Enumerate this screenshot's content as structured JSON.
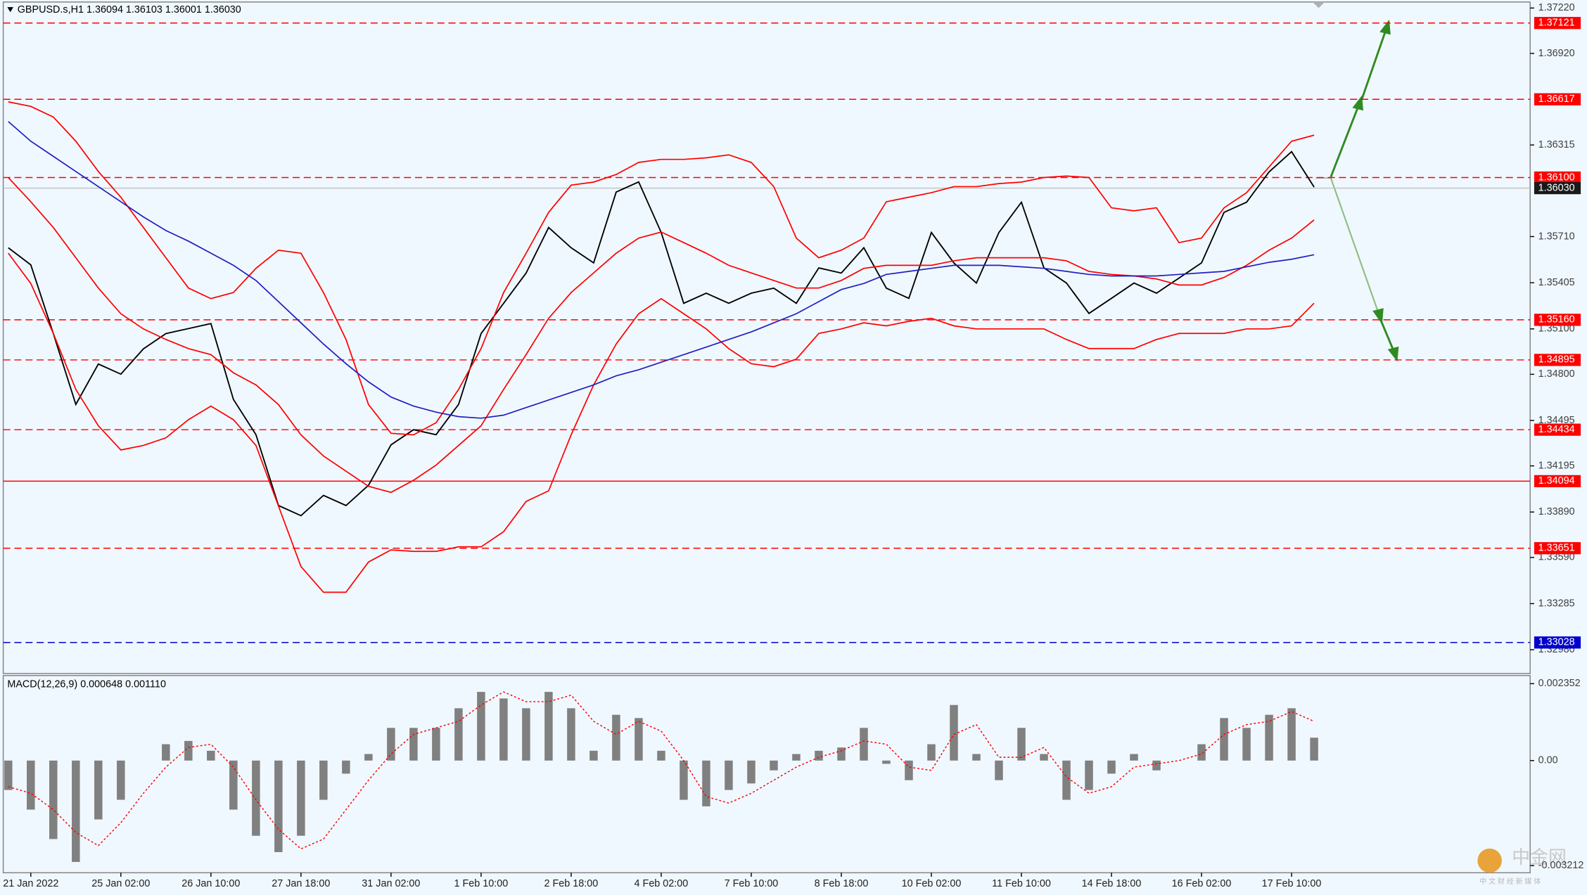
{
  "chart_data": [
    {
      "type": "line",
      "title": "GBPUSD.s,H1  1.36094 1.36103 1.36001 1.36030",
      "categories": [
        null,
        "21 Jan 2022",
        null,
        null,
        null,
        "25 Jan 02:00",
        null,
        null,
        null,
        "26 Jan 10:00",
        null,
        null,
        null,
        "27 Jan 18:00",
        null,
        null,
        null,
        "31 Jan 02:00",
        null,
        null,
        null,
        "1 Feb 10:00",
        null,
        null,
        null,
        "2 Feb 18:00",
        null,
        null,
        null,
        "4 Feb 02:00",
        null,
        null,
        null,
        "7 Feb 10:00",
        null,
        null,
        null,
        "8 Feb 18:00",
        null,
        null,
        null,
        "10 Feb 02:00",
        null,
        null,
        null,
        "11 Feb 10:00",
        null,
        null,
        null,
        "14 Feb 18:00",
        null,
        null,
        null,
        "16 Feb 02:00",
        null,
        null,
        null,
        "17 Feb 10:00",
        null
      ],
      "series": [
        {
          "color": "#000000",
          "values": [
            1.35636,
            1.35523,
            1.35069,
            1.34601,
            1.34868,
            1.34801,
            1.34968,
            1.35069,
            1.35102,
            1.35135,
            1.34634,
            1.34401,
            1.33933,
            1.33866,
            1.34,
            1.33933,
            1.34067,
            1.34334,
            1.34434,
            1.34401,
            1.34601,
            1.35069,
            1.35269,
            1.35469,
            1.3577,
            1.35636,
            1.35536,
            1.36004,
            1.36071,
            1.35737,
            1.35269,
            1.35336,
            1.35269,
            1.35336,
            1.35369,
            1.35269,
            1.35503,
            1.35469,
            1.35636,
            1.35369,
            1.35302,
            1.35737,
            1.35536,
            1.35403,
            1.35737,
            1.35937,
            1.35503,
            1.35403,
            1.35202,
            1.35302,
            1.35403,
            1.35336,
            1.35436,
            1.35536,
            1.3587,
            1.35937,
            1.36137,
            1.36271,
            1.36037
          ]
        },
        {
          "color": "#ff0000",
          "values": [
            1.366,
            1.3657,
            1.365,
            1.3634,
            1.3614,
            1.3597,
            1.3577,
            1.3557,
            1.3537,
            1.353,
            1.3534,
            1.355,
            1.3562,
            1.356,
            1.3534,
            1.3503,
            1.346,
            1.3441,
            1.344,
            1.3448,
            1.347,
            1.3497,
            1.3534,
            1.356,
            1.3587,
            1.3605,
            1.3607,
            1.3612,
            1.362,
            1.3622,
            1.3622,
            1.3623,
            1.3625,
            1.362,
            1.3604,
            1.357,
            1.3557,
            1.3562,
            1.357,
            1.3594,
            1.3597,
            1.36,
            1.3604,
            1.3604,
            1.3606,
            1.3607,
            1.361,
            1.3611,
            1.361,
            1.359,
            1.3588,
            1.359,
            1.3567,
            1.357,
            1.359,
            1.36,
            1.3617,
            1.3634,
            1.3638
          ]
        },
        {
          "color": "#ff0000",
          "values": [
            1.361,
            1.3594,
            1.3577,
            1.3557,
            1.3537,
            1.352,
            1.351,
            1.3503,
            1.3497,
            1.3493,
            1.3481,
            1.3473,
            1.346,
            1.344,
            1.3426,
            1.3416,
            1.3406,
            1.3402,
            1.341,
            1.342,
            1.3433,
            1.3446,
            1.347,
            1.3493,
            1.3517,
            1.3534,
            1.3547,
            1.356,
            1.357,
            1.3574,
            1.3567,
            1.356,
            1.3552,
            1.3547,
            1.3542,
            1.3537,
            1.3537,
            1.3542,
            1.355,
            1.3552,
            1.3552,
            1.3552,
            1.3555,
            1.3557,
            1.3557,
            1.3557,
            1.3557,
            1.3555,
            1.3548,
            1.3546,
            1.3545,
            1.3543,
            1.3539,
            1.3539,
            1.3544,
            1.3552,
            1.3562,
            1.357,
            1.3582
          ]
        },
        {
          "color": "#ff0000",
          "values": [
            1.356,
            1.354,
            1.3507,
            1.347,
            1.3446,
            1.343,
            1.3433,
            1.3438,
            1.345,
            1.3459,
            1.345,
            1.3433,
            1.3393,
            1.3353,
            1.3336,
            1.3336,
            1.3356,
            1.3364,
            1.3363,
            1.3363,
            1.3366,
            1.3366,
            1.3376,
            1.3396,
            1.3403,
            1.344,
            1.3473,
            1.35,
            1.352,
            1.353,
            1.352,
            1.351,
            1.3497,
            1.3487,
            1.3485,
            1.349,
            1.3507,
            1.351,
            1.3514,
            1.3512,
            1.3515,
            1.3517,
            1.3512,
            1.351,
            1.351,
            1.351,
            1.351,
            1.3503,
            1.3497,
            1.3497,
            1.3497,
            1.3503,
            1.3507,
            1.3507,
            1.3507,
            1.351,
            1.351,
            1.3512,
            1.3527
          ]
        },
        {
          "color": "#2020c0",
          "values": [
            1.3647,
            1.3634,
            1.3624,
            1.3614,
            1.3604,
            1.3594,
            1.3584,
            1.3575,
            1.3568,
            1.356,
            1.3552,
            1.3542,
            1.3528,
            1.3514,
            1.35,
            1.3487,
            1.3475,
            1.3465,
            1.3459,
            1.3455,
            1.3452,
            1.3451,
            1.3453,
            1.3458,
            1.3463,
            1.3468,
            1.3473,
            1.3479,
            1.3483,
            1.3488,
            1.3493,
            1.3498,
            1.3503,
            1.3508,
            1.3514,
            1.352,
            1.3528,
            1.3536,
            1.354,
            1.3546,
            1.3548,
            1.355,
            1.3552,
            1.3552,
            1.3552,
            1.3551,
            1.355,
            1.3548,
            1.3546,
            1.3545,
            1.3545,
            1.3545,
            1.3546,
            1.3547,
            1.3548,
            1.3551,
            1.3554,
            1.3556,
            1.3559
          ]
        }
      ],
      "ylim": [
        1.32823,
        1.37273
      ],
      "yticks": [
        {
          "value": 1.3722,
          "label": "1.37220"
        },
        {
          "value": 1.3692,
          "label": "1.36920"
        },
        {
          "value": 1.36315,
          "label": "1.36315"
        },
        {
          "value": 1.3571,
          "label": "1.35710"
        },
        {
          "value": 1.35405,
          "label": "1.35405"
        },
        {
          "value": 1.351,
          "label": "1.35100"
        },
        {
          "value": 1.348,
          "label": "1.34800"
        },
        {
          "value": 1.34495,
          "label": "1.34495"
        },
        {
          "value": 1.34195,
          "label": "1.34195"
        },
        {
          "value": 1.3389,
          "label": "1.33890"
        },
        {
          "value": 1.3359,
          "label": "1.33590"
        },
        {
          "value": 1.33285,
          "label": "1.33285"
        },
        {
          "value": 1.3298,
          "label": "1.32980"
        }
      ],
      "levels": [
        {
          "value": 1.37121,
          "label": "1.37121",
          "color": "#ff0000",
          "style": "dashed"
        },
        {
          "value": 1.36617,
          "label": "1.36617",
          "color": "#ff0000",
          "style": "dashed"
        },
        {
          "value": 1.361,
          "label": "1.36100",
          "color": "#ff0000",
          "style": "dashed"
        },
        {
          "value": 1.3516,
          "label": "1.35160",
          "color": "#ff0000",
          "style": "dashed"
        },
        {
          "value": 1.34895,
          "label": "1.34895",
          "color": "#ff0000",
          "style": "dashed"
        },
        {
          "value": 1.34434,
          "label": "1.34434",
          "color": "#ff0000",
          "style": "dashed"
        },
        {
          "value": 1.34094,
          "label": "1.34094",
          "color": "#ff0000",
          "style": "solid"
        },
        {
          "value": 1.33651,
          "label": "1.33651",
          "color": "#ff0000",
          "style": "dashed"
        },
        {
          "value": 1.33028,
          "label": "1.33028",
          "color": "#0000cc",
          "style": "dashed"
        }
      ],
      "current_price": {
        "value": 1.3603,
        "label": "1.36030",
        "color": "#c0c0c0"
      }
    },
    {
      "type": "macd",
      "title": "MACD(12,26,9) 0.000648 0.001110",
      "series": [
        {
          "style": "bar",
          "color": "#808080",
          "values": [
            -0.0009,
            -0.0015,
            -0.0024,
            -0.0031,
            -0.0018,
            -0.0012,
            0.0,
            0.0005,
            0.0006,
            0.0003,
            -0.0015,
            -0.0023,
            -0.0028,
            -0.0023,
            -0.0012,
            -0.0004,
            0.0002,
            0.001,
            0.001,
            0.001,
            0.0016,
            0.0021,
            0.0019,
            0.0016,
            0.0021,
            0.0016,
            0.0003,
            0.0014,
            0.0013,
            0.0003,
            -0.0012,
            -0.0014,
            -0.0009,
            -0.0007,
            -0.0003,
            0.0002,
            0.0003,
            0.0004,
            0.001,
            -0.0001,
            -0.0006,
            0.0005,
            0.0017,
            0.0002,
            -0.0006,
            0.001,
            0.0002,
            -0.0012,
            -0.0009,
            -0.0004,
            0.0002,
            -0.0003,
            0.0,
            0.0005,
            0.0013,
            0.001,
            0.0014,
            0.0016,
            0.0007
          ]
        },
        {
          "style": "dotted",
          "color": "#ff0000",
          "values": [
            -0.0008,
            -0.001,
            -0.0015,
            -0.0022,
            -0.0026,
            -0.0019,
            -0.001,
            -0.0002,
            0.0004,
            0.0005,
            -0.0002,
            -0.0012,
            -0.0021,
            -0.0027,
            -0.0024,
            -0.0015,
            -0.0006,
            0.0002,
            0.0008,
            0.001,
            0.0012,
            0.0017,
            0.0021,
            0.0018,
            0.0018,
            0.002,
            0.0012,
            0.0008,
            0.0012,
            0.0009,
            0.0,
            -0.0011,
            -0.0013,
            -0.001,
            -0.0006,
            -0.0002,
            0.0001,
            0.0003,
            0.0006,
            0.0005,
            -0.0002,
            -0.0003,
            0.0008,
            0.0011,
            0.0001,
            0.0001,
            0.0004,
            -0.0005,
            -0.001,
            -0.0008,
            -0.0002,
            -0.0001,
            0.0,
            0.0002,
            0.0008,
            0.0011,
            0.0012,
            0.0015,
            0.0012
          ]
        }
      ],
      "ylim": [
        -0.0034,
        0.0026
      ],
      "yticks": [
        0.002352,
        {
          "value": 0,
          "label": "0.00"
        },
        -0.003212
      ]
    }
  ],
  "watermark": {
    "logo": "中金网",
    "tagline": "中 文 财 经 新 媒 体"
  }
}
